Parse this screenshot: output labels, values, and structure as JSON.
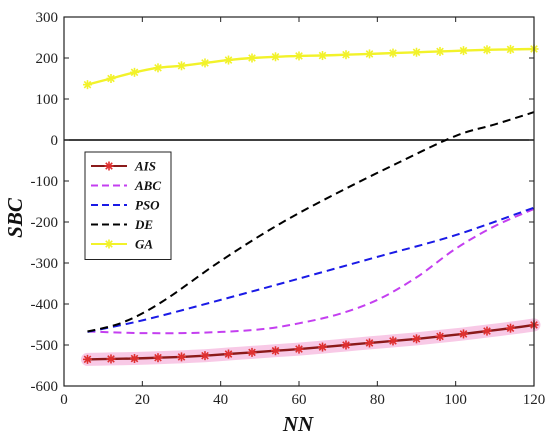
{
  "chart_data": {
    "type": "line",
    "xlabel": "NN",
    "ylabel": "SBC",
    "xlim": [
      0,
      120
    ],
    "ylim": [
      -600,
      300
    ],
    "xticks": [
      0,
      20,
      40,
      60,
      80,
      100,
      120
    ],
    "yticks": [
      -600,
      -500,
      -400,
      -300,
      -200,
      -100,
      0,
      100,
      200,
      300
    ],
    "zero_line": true,
    "grid": false,
    "legend_position": "upper-left",
    "series": [
      {
        "name": "AIS",
        "color": "#8b1a1a",
        "style": "solid",
        "marker": "asterisk",
        "marker_color": "#e03030",
        "shade_color": "#f7c3e3",
        "x": [
          6,
          12,
          18,
          24,
          30,
          36,
          42,
          48,
          54,
          60,
          66,
          72,
          78,
          84,
          90,
          96,
          102,
          108,
          114,
          120
        ],
        "y": [
          -535,
          -534,
          -533,
          -531,
          -529,
          -526,
          -522,
          -518,
          -514,
          -510,
          -505,
          -500,
          -495,
          -490,
          -485,
          -479,
          -473,
          -466,
          -459,
          -451
        ]
      },
      {
        "name": "ABC",
        "color": "#c43ff0",
        "style": "dashed",
        "marker": "none",
        "x": [
          6,
          20,
          35,
          50,
          60,
          70,
          80,
          90,
          100,
          110,
          120
        ],
        "y": [
          -467,
          -471,
          -470,
          -462,
          -447,
          -425,
          -390,
          -335,
          -265,
          -210,
          -168
        ]
      },
      {
        "name": "PSO",
        "color": "#1a1ae6",
        "style": "dashed",
        "marker": "none",
        "x": [
          6,
          20,
          40,
          60,
          80,
          100,
          120
        ],
        "y": [
          -468,
          -440,
          -390,
          -338,
          -285,
          -232,
          -165
        ]
      },
      {
        "name": "DE",
        "color": "#000000",
        "style": "dashed",
        "marker": "none",
        "x": [
          6,
          15,
          25,
          40,
          55,
          70,
          85,
          100,
          110,
          120
        ],
        "y": [
          -467,
          -445,
          -395,
          -295,
          -205,
          -128,
          -57,
          10,
          38,
          68
        ]
      },
      {
        "name": "GA",
        "color": "#f2f22a",
        "style": "solid",
        "marker": "asterisk",
        "marker_color": "#f2f22a",
        "x": [
          6,
          12,
          18,
          24,
          30,
          36,
          42,
          48,
          54,
          60,
          66,
          72,
          78,
          84,
          90,
          96,
          102,
          108,
          114,
          120
        ],
        "y": [
          135,
          150,
          165,
          176,
          181,
          188,
          195,
          200,
          203,
          205,
          206,
          208,
          210,
          212,
          214,
          216,
          218,
          220,
          221,
          222
        ]
      }
    ]
  }
}
